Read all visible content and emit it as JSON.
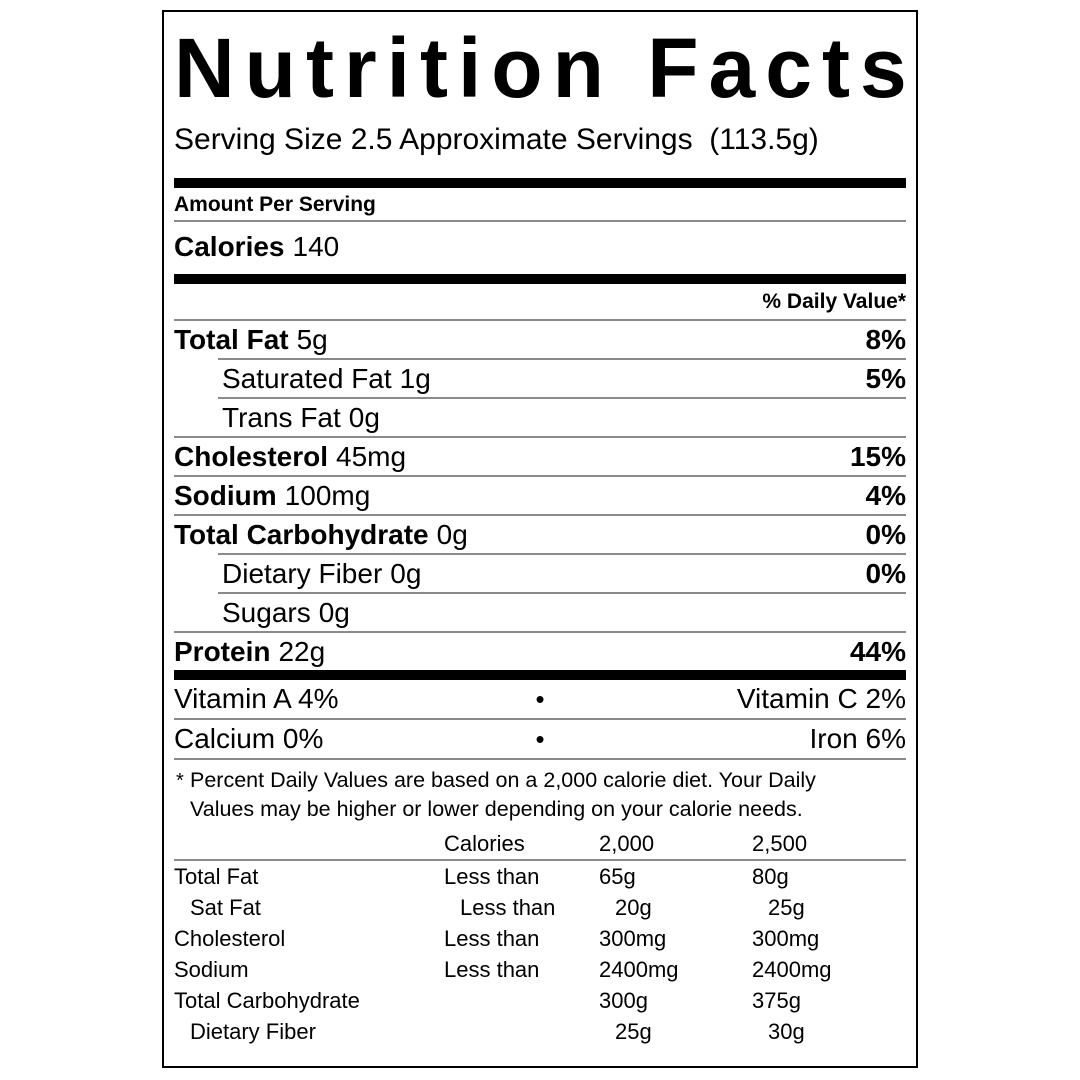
{
  "label": {
    "title": "Nutrition Facts",
    "serving_size": "Serving Size 2.5 Approximate Servings  (113.5g)",
    "amount_per_serving": "Amount Per Serving",
    "calories": {
      "label": "Calories",
      "value": "140"
    },
    "daily_value_header": "% Daily Value*",
    "nutrients": [
      {
        "label": "Total Fat",
        "amount": "5g",
        "dv": "8%"
      },
      {
        "label": "Saturated Fat",
        "amount": "1g",
        "dv": "5%"
      },
      {
        "label": "Trans Fat",
        "amount": "0g",
        "dv": ""
      },
      {
        "label": "Cholesterol",
        "amount": "45mg",
        "dv": "15%"
      },
      {
        "label": "Sodium",
        "amount": "100mg",
        "dv": "4%"
      },
      {
        "label": "Total Carbohydrate",
        "amount": "0g",
        "dv": "0%"
      },
      {
        "label": "Dietary Fiber",
        "amount": "0g",
        "dv": "0%"
      },
      {
        "label": "Sugars",
        "amount": "0g",
        "dv": ""
      },
      {
        "label": "Protein",
        "amount": "22g",
        "dv": "44%"
      }
    ],
    "vitamins": [
      {
        "left": "Vitamin A 4%",
        "sep": "•",
        "right": "Vitamin C 2%"
      },
      {
        "left": "Calcium 0%",
        "sep": "•",
        "right": "Iron 6%"
      }
    ],
    "footnote": {
      "marker": "*",
      "line1": "Percent Daily Values are based on a 2,000 calorie diet. Your Daily",
      "line2": "Values may be higher or lower depending on your calorie needs."
    },
    "reference_table": {
      "col_headers": [
        "Calories",
        "2,000",
        "2,500"
      ],
      "rows": [
        {
          "name": "Total Fat",
          "qualifier": "Less than",
          "v2000": "65g",
          "v2500": "80g"
        },
        {
          "name": "Sat Fat",
          "qualifier": "Less than",
          "v2000": "20g",
          "v2500": "25g"
        },
        {
          "name": "Cholesterol",
          "qualifier": "Less than",
          "v2000": "300mg",
          "v2500": "300mg"
        },
        {
          "name": "Sodium",
          "qualifier": "Less than",
          "v2000": "2400mg",
          "v2500": "2400mg"
        },
        {
          "name": "Total Carbohydrate",
          "qualifier": "",
          "v2000": "300g",
          "v2500": "375g"
        },
        {
          "name": "Dietary Fiber",
          "qualifier": "",
          "v2000": "25g",
          "v2500": "30g"
        }
      ]
    },
    "colors": {
      "background": "#ffffff",
      "text": "#000000",
      "hairline": "#8a8a8a",
      "bar": "#000000",
      "border": "#000000"
    }
  }
}
